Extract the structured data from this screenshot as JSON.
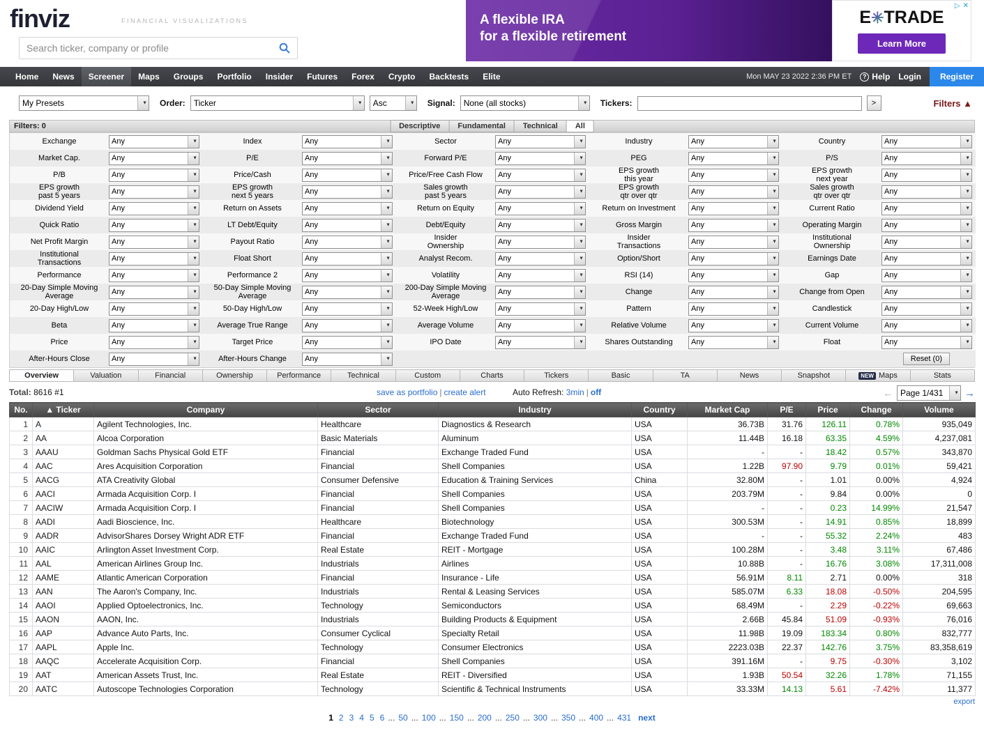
{
  "colors": {
    "positive": "#008800",
    "negative": "#bb0000",
    "link": "#2a6dcc",
    "register_button": "#2b87ea",
    "ad_purple": "#5b2193",
    "filters_toggle": "#7a1a1a"
  },
  "header": {
    "logo": "finviz",
    "tagline": "FINANCIAL VISUALIZATIONS",
    "search_placeholder": "Search ticker, company or profile",
    "ad": {
      "line1": "A flexible IRA",
      "line2": "for a flexible retirement",
      "brand_e": "E",
      "brand_star": "✳",
      "brand_trade": "TRADE",
      "button": "Learn More",
      "adchoices_triangle": "▷",
      "adchoices_close": "✕"
    }
  },
  "nav": {
    "items": [
      "Home",
      "News",
      "Screener",
      "Maps",
      "Groups",
      "Portfolio",
      "Insider",
      "Futures",
      "Forex",
      "Crypto",
      "Backtests",
      "Elite"
    ],
    "active": "Screener",
    "datetime": "Mon MAY 23 2022 2:36 PM ET",
    "help_icon": "?",
    "help": "Help",
    "login": "Login",
    "register": "Register"
  },
  "controls": {
    "presets": "My Presets",
    "order_label": "Order:",
    "order": "Ticker",
    "order_dir": "Asc",
    "signal_label": "Signal:",
    "signal": "None (all stocks)",
    "tickers_label": "Tickers:",
    "tickers_value": "",
    "go": ">",
    "filters_toggle": "Filters",
    "filters_arrow": "▲"
  },
  "filter_bar": {
    "label": "Filters: 0",
    "tabs": [
      "Descriptive",
      "Fundamental",
      "Technical",
      "All"
    ],
    "active_tab": "All"
  },
  "filter_grid": {
    "any": "Any",
    "reset": "Reset (0)",
    "rows": [
      [
        "Exchange",
        "Index",
        "Sector",
        "Industry",
        "Country"
      ],
      [
        "Market Cap.",
        "P/E",
        "Forward P/E",
        "PEG",
        "P/S"
      ],
      [
        "P/B",
        "Price/Cash",
        "Price/Free Cash Flow",
        "EPS growth\nthis year",
        "EPS growth\nnext year"
      ],
      [
        "EPS growth\npast 5 years",
        "EPS growth\nnext 5 years",
        "Sales growth\npast 5 years",
        "EPS growth\nqtr over qtr",
        "Sales growth\nqtr over qtr"
      ],
      [
        "Dividend Yield",
        "Return on Assets",
        "Return on Equity",
        "Return on Investment",
        "Current Ratio"
      ],
      [
        "Quick Ratio",
        "LT Debt/Equity",
        "Debt/Equity",
        "Gross Margin",
        "Operating Margin"
      ],
      [
        "Net Profit Margin",
        "Payout Ratio",
        "Insider\nOwnership",
        "Insider\nTransactions",
        "Institutional\nOwnership"
      ],
      [
        "Institutional\nTransactions",
        "Float Short",
        "Analyst Recom.",
        "Option/Short",
        "Earnings Date"
      ],
      [
        "Performance",
        "Performance 2",
        "Volatility",
        "RSI (14)",
        "Gap"
      ],
      [
        "20-Day Simple Moving\nAverage",
        "50-Day Simple Moving\nAverage",
        "200-Day Simple Moving\nAverage",
        "Change",
        "Change from Open"
      ],
      [
        "20-Day High/Low",
        "50-Day High/Low",
        "52-Week High/Low",
        "Pattern",
        "Candlestick"
      ],
      [
        "Beta",
        "Average True Range",
        "Average Volume",
        "Relative Volume",
        "Current Volume"
      ],
      [
        "Price",
        "Target Price",
        "IPO Date",
        "Shares Outstanding",
        "Float"
      ],
      [
        "After-Hours Close",
        "After-Hours Change",
        "",
        "",
        ""
      ]
    ]
  },
  "view_tabs": {
    "items": [
      "Overview",
      "Valuation",
      "Financial",
      "Ownership",
      "Performance",
      "Technical",
      "Custom",
      "Charts",
      "Tickers",
      "Basic",
      "TA",
      "News",
      "Snapshot",
      "Maps",
      "Stats"
    ],
    "active": "Overview",
    "new_badge": "NEW",
    "badge_before": "Maps"
  },
  "status": {
    "total_label": "Total:",
    "total": "8616",
    "rank": "#1",
    "save_link": "save as portfolio",
    "sep": "|",
    "alert_link": "create alert",
    "refresh_label": "Auto Refresh:",
    "refresh_time": "3min",
    "refresh_off": "off",
    "page_select": "Page 1/431",
    "prev_arrow": "←",
    "next_arrow": "→"
  },
  "table": {
    "columns": [
      "No.",
      "▲ Ticker",
      "Company",
      "Sector",
      "Industry",
      "Country",
      "Market Cap",
      "P/E",
      "Price",
      "Change",
      "Volume"
    ],
    "rows": [
      {
        "no": "1",
        "ticker": "A",
        "company": "Agilent Technologies, Inc.",
        "sector": "Healthcare",
        "industry": "Diagnostics & Research",
        "country": "USA",
        "market_cap": "36.73B",
        "pe": "31.76",
        "pe_color": "black",
        "price": "126.11",
        "price_color": "green",
        "change": "0.78%",
        "change_color": "green",
        "volume": "935,049"
      },
      {
        "no": "2",
        "ticker": "AA",
        "company": "Alcoa Corporation",
        "sector": "Basic Materials",
        "industry": "Aluminum",
        "country": "USA",
        "market_cap": "11.44B",
        "pe": "16.18",
        "pe_color": "black",
        "price": "63.35",
        "price_color": "green",
        "change": "4.59%",
        "change_color": "green",
        "volume": "4,237,081"
      },
      {
        "no": "3",
        "ticker": "AAAU",
        "company": "Goldman Sachs Physical Gold ETF",
        "sector": "Financial",
        "industry": "Exchange Traded Fund",
        "country": "USA",
        "market_cap": "-",
        "pe": "-",
        "pe_color": "black",
        "price": "18.42",
        "price_color": "green",
        "change": "0.57%",
        "change_color": "green",
        "volume": "343,870"
      },
      {
        "no": "4",
        "ticker": "AAC",
        "company": "Ares Acquisition Corporation",
        "sector": "Financial",
        "industry": "Shell Companies",
        "country": "USA",
        "market_cap": "1.22B",
        "pe": "97.90",
        "pe_color": "red",
        "price": "9.79",
        "price_color": "green",
        "change": "0.01%",
        "change_color": "green",
        "volume": "59,421"
      },
      {
        "no": "5",
        "ticker": "AACG",
        "company": "ATA Creativity Global",
        "sector": "Consumer Defensive",
        "industry": "Education & Training Services",
        "country": "China",
        "market_cap": "32.80M",
        "pe": "-",
        "pe_color": "black",
        "price": "1.01",
        "price_color": "black",
        "change": "0.00%",
        "change_color": "black",
        "volume": "4,924"
      },
      {
        "no": "6",
        "ticker": "AACI",
        "company": "Armada Acquisition Corp. I",
        "sector": "Financial",
        "industry": "Shell Companies",
        "country": "USA",
        "market_cap": "203.79M",
        "pe": "-",
        "pe_color": "black",
        "price": "9.84",
        "price_color": "black",
        "change": "0.00%",
        "change_color": "black",
        "volume": "0"
      },
      {
        "no": "7",
        "ticker": "AACIW",
        "company": "Armada Acquisition Corp. I",
        "sector": "Financial",
        "industry": "Shell Companies",
        "country": "USA",
        "market_cap": "-",
        "pe": "-",
        "pe_color": "black",
        "price": "0.23",
        "price_color": "green",
        "change": "14.99%",
        "change_color": "green",
        "volume": "21,547"
      },
      {
        "no": "8",
        "ticker": "AADI",
        "company": "Aadi Bioscience, Inc.",
        "sector": "Healthcare",
        "industry": "Biotechnology",
        "country": "USA",
        "market_cap": "300.53M",
        "pe": "-",
        "pe_color": "black",
        "price": "14.91",
        "price_color": "green",
        "change": "0.85%",
        "change_color": "green",
        "volume": "18,899"
      },
      {
        "no": "9",
        "ticker": "AADR",
        "company": "AdvisorShares Dorsey Wright ADR ETF",
        "sector": "Financial",
        "industry": "Exchange Traded Fund",
        "country": "USA",
        "market_cap": "-",
        "pe": "-",
        "pe_color": "black",
        "price": "55.32",
        "price_color": "green",
        "change": "2.24%",
        "change_color": "green",
        "volume": "483"
      },
      {
        "no": "10",
        "ticker": "AAIC",
        "company": "Arlington Asset Investment Corp.",
        "sector": "Real Estate",
        "industry": "REIT - Mortgage",
        "country": "USA",
        "market_cap": "100.28M",
        "pe": "-",
        "pe_color": "black",
        "price": "3.48",
        "price_color": "green",
        "change": "3.11%",
        "change_color": "green",
        "volume": "67,486"
      },
      {
        "no": "11",
        "ticker": "AAL",
        "company": "American Airlines Group Inc.",
        "sector": "Industrials",
        "industry": "Airlines",
        "country": "USA",
        "market_cap": "10.88B",
        "pe": "-",
        "pe_color": "black",
        "price": "16.76",
        "price_color": "green",
        "change": "3.08%",
        "change_color": "green",
        "volume": "17,311,008"
      },
      {
        "no": "12",
        "ticker": "AAME",
        "company": "Atlantic American Corporation",
        "sector": "Financial",
        "industry": "Insurance - Life",
        "country": "USA",
        "market_cap": "56.91M",
        "pe": "8.11",
        "pe_color": "green",
        "price": "2.71",
        "price_color": "black",
        "change": "0.00%",
        "change_color": "black",
        "volume": "318"
      },
      {
        "no": "13",
        "ticker": "AAN",
        "company": "The Aaron's Company, Inc.",
        "sector": "Industrials",
        "industry": "Rental & Leasing Services",
        "country": "USA",
        "market_cap": "585.07M",
        "pe": "6.33",
        "pe_color": "green",
        "price": "18.08",
        "price_color": "red",
        "change": "-0.50%",
        "change_color": "red",
        "volume": "204,595"
      },
      {
        "no": "14",
        "ticker": "AAOI",
        "company": "Applied Optoelectronics, Inc.",
        "sector": "Technology",
        "industry": "Semiconductors",
        "country": "USA",
        "market_cap": "68.49M",
        "pe": "-",
        "pe_color": "black",
        "price": "2.29",
        "price_color": "red",
        "change": "-0.22%",
        "change_color": "red",
        "volume": "69,663"
      },
      {
        "no": "15",
        "ticker": "AAON",
        "company": "AAON, Inc.",
        "sector": "Industrials",
        "industry": "Building Products & Equipment",
        "country": "USA",
        "market_cap": "2.66B",
        "pe": "45.84",
        "pe_color": "black",
        "price": "51.09",
        "price_color": "red",
        "change": "-0.93%",
        "change_color": "red",
        "volume": "76,016"
      },
      {
        "no": "16",
        "ticker": "AAP",
        "company": "Advance Auto Parts, Inc.",
        "sector": "Consumer Cyclical",
        "industry": "Specialty Retail",
        "country": "USA",
        "market_cap": "11.98B",
        "pe": "19.09",
        "pe_color": "black",
        "price": "183.34",
        "price_color": "green",
        "change": "0.80%",
        "change_color": "green",
        "volume": "832,777"
      },
      {
        "no": "17",
        "ticker": "AAPL",
        "company": "Apple Inc.",
        "sector": "Technology",
        "industry": "Consumer Electronics",
        "country": "USA",
        "market_cap": "2223.03B",
        "pe": "22.37",
        "pe_color": "black",
        "price": "142.76",
        "price_color": "green",
        "change": "3.75%",
        "change_color": "green",
        "volume": "83,358,619"
      },
      {
        "no": "18",
        "ticker": "AAQC",
        "company": "Accelerate Acquisition Corp.",
        "sector": "Financial",
        "industry": "Shell Companies",
        "country": "USA",
        "market_cap": "391.16M",
        "pe": "-",
        "pe_color": "black",
        "price": "9.75",
        "price_color": "red",
        "change": "-0.30%",
        "change_color": "red",
        "volume": "3,102"
      },
      {
        "no": "19",
        "ticker": "AAT",
        "company": "American Assets Trust, Inc.",
        "sector": "Real Estate",
        "industry": "REIT - Diversified",
        "country": "USA",
        "market_cap": "1.93B",
        "pe": "50.54",
        "pe_color": "red",
        "price": "32.26",
        "price_color": "green",
        "change": "1.78%",
        "change_color": "green",
        "volume": "71,155"
      },
      {
        "no": "20",
        "ticker": "AATC",
        "company": "Autoscope Technologies Corporation",
        "sector": "Technology",
        "industry": "Scientific & Technical Instruments",
        "country": "USA",
        "market_cap": "33.33M",
        "pe": "14.13",
        "pe_color": "green",
        "price": "5.61",
        "price_color": "red",
        "change": "-7.42%",
        "change_color": "red",
        "volume": "11,377"
      }
    ]
  },
  "pagination": {
    "items": [
      "1",
      "2",
      "3",
      "4",
      "5",
      "6",
      "...",
      "50",
      "...",
      "100",
      "...",
      "150",
      "...",
      "200",
      "...",
      "250",
      "...",
      "300",
      "...",
      "350",
      "...",
      "400",
      "...",
      "431"
    ],
    "current": "1",
    "next": "next"
  },
  "export_link": "export"
}
